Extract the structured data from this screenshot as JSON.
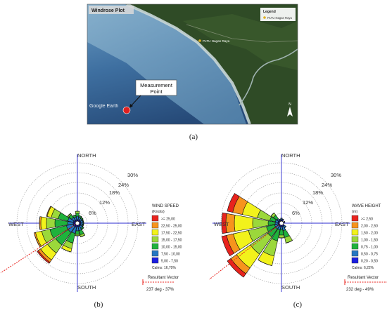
{
  "panel_a": {
    "map_title": "Windrose Plot",
    "legend_title": "Legend",
    "legend_item": "PLTU Nagan Raya",
    "place_label": "PLTU Nagan Raya",
    "measurement_label_line1": "Measurement",
    "measurement_label_line2": "Point",
    "watermark": "Google Earth",
    "north_arrow": "N",
    "caption": "(a)",
    "colors": {
      "sea_light": "#4f86b4",
      "sea_deep": "#284f7e",
      "land": "#2d4a24",
      "coast": "#b7c6c8",
      "marker": "#e02020"
    }
  },
  "panel_b": {
    "caption": "(b)",
    "compass": {
      "north": "NORTH",
      "south": "SOUTH",
      "east": "EAST",
      "west": "WEST"
    },
    "ring_labels": [
      "6%",
      "12%",
      "18%",
      "24%",
      "30%"
    ],
    "legend_title": "WIND SPEED",
    "legend_unit": "(Knots)",
    "legend_items": [
      {
        "label": ">= 25,00",
        "color": "#e8231d"
      },
      {
        "label": "22,50 - 25,00",
        "color": "#f7941d"
      },
      {
        "label": "17,50 - 22,50",
        "color": "#f2f21b"
      },
      {
        "label": "15,00 - 17,50",
        "color": "#9bd83b"
      },
      {
        "label": "10,00 - 15,00",
        "color": "#1fb23c"
      },
      {
        "label": "7,50 - 10,00",
        "color": "#2577c2"
      },
      {
        "label": "5,00 - 7,50",
        "color": "#1b1ee0"
      }
    ],
    "calms": "Calms: 16,70%",
    "resultant_title": "Resultant Vector",
    "resultant_value": "237 deg - 37%"
  },
  "panel_c": {
    "caption": "(c)",
    "compass": {
      "north": "NORTH",
      "south": "SOUTH",
      "east": "EAST",
      "west": "WEST"
    },
    "ring_labels": [
      "6%",
      "12%",
      "18%",
      "24%",
      "30%"
    ],
    "legend_title": "WAVE HEIGHT",
    "legend_unit": "(m)",
    "legend_items": [
      {
        "label": ">= 2,50",
        "color": "#e8231d"
      },
      {
        "label": "2,00 - 2,50",
        "color": "#f7941d"
      },
      {
        "label": "1,50 - 2,00",
        "color": "#f2f21b"
      },
      {
        "label": "1,00 - 1,50",
        "color": "#9bd83b"
      },
      {
        "label": "0,75 - 1,00",
        "color": "#1fb23c"
      },
      {
        "label": "0,50 - 0,75",
        "color": "#2577c2"
      },
      {
        "label": "0,20 - 0,50",
        "color": "#1b1ee0"
      }
    ],
    "calms": "Calms: 6,22%",
    "resultant_title": "Resultant Vector",
    "resultant_value": "232 deg - 49%"
  }
}
